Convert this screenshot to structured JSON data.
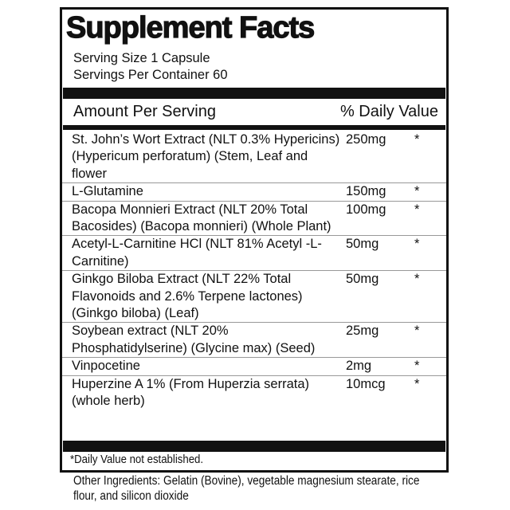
{
  "title": "Supplement Facts",
  "serving_size": "Serving Size 1 Capsule",
  "servings_per_container": "Servings Per Container 60",
  "header": {
    "amount": "Amount Per Serving",
    "daily_value": "% Daily Value"
  },
  "ingredients": [
    {
      "name": "St. John’s Wort Extract (NLT 0.3% Hypericins) (Hypericum perforatum) (Stem, Leaf and flower",
      "amount": "250mg",
      "dv": "*"
    },
    {
      "name": "L-Glutamine",
      "amount": "150mg",
      "dv": "*"
    },
    {
      "name": "Bacopa Monnieri Extract (NLT 20% Total Bacosides) (Bacopa monnieri) (Whole Plant)",
      "amount": "100mg",
      "dv": "*"
    },
    {
      "name": "Acetyl-L-Carnitine HCl (NLT 81% Acetyl -L-Carnitine)",
      "amount": "50mg",
      "dv": "*"
    },
    {
      "name": "Ginkgo Biloba Extract (NLT 22% Total Flavonoids and 2.6% Terpene lactones) (Ginkgo biloba) (Leaf)",
      "amount": "50mg",
      "dv": "*"
    },
    {
      "name": "Soybean extract (NLT 20% Phosphatidylserine) (Glycine max) (Seed)",
      "amount": "25mg",
      "dv": "*"
    },
    {
      "name": "Vinpocetine",
      "amount": "2mg",
      "dv": "*"
    },
    {
      "name": "Huperzine A 1% (From Huperzia serrata) (whole herb)",
      "amount": "10mcg",
      "dv": "*"
    }
  ],
  "footnote": "*Daily Value not established.",
  "other_ingredients": "Other Ingredients: Gelatin (Bovine), vegetable magnesium stearate, rice flour, and silicon dioxide"
}
